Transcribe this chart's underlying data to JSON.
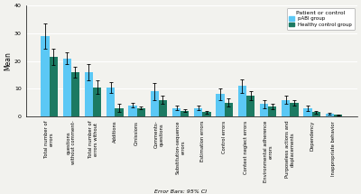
{
  "categories": [
    "Total number of\nerrors",
    "questions\nwithout comment-",
    "Total number of\nerrors without",
    "Additions",
    "Omissions",
    "Comments-\nquestions",
    "Substitution-sequence\nerrors",
    "Estimation errors",
    "Control errors",
    "Context neglect errors",
    "Environmental adherence\nerrors",
    "Purposeless actions and\ndisplacements",
    "Dependency",
    "Inappropriate behavior"
  ],
  "pABI_mean": [
    29.0,
    21.0,
    16.0,
    10.5,
    4.0,
    9.0,
    3.0,
    3.0,
    8.0,
    11.0,
    4.5,
    6.0,
    3.0,
    1.0
  ],
  "control_mean": [
    21.5,
    16.0,
    10.5,
    3.0,
    3.0,
    6.0,
    2.0,
    1.5,
    5.0,
    7.5,
    3.5,
    5.0,
    1.5,
    0.5
  ],
  "pABI_err": [
    4.5,
    2.0,
    3.0,
    2.0,
    0.8,
    3.0,
    0.8,
    0.8,
    2.0,
    2.5,
    1.5,
    1.5,
    1.0,
    0.4
  ],
  "control_err": [
    3.0,
    2.0,
    2.5,
    1.5,
    0.5,
    1.5,
    0.5,
    0.5,
    1.5,
    1.5,
    1.0,
    1.0,
    0.5,
    0.3
  ],
  "pABI_color": "#5BC8F5",
  "control_color": "#1C7A62",
  "background_color": "#f2f2ee",
  "ylabel": "Mean",
  "ylim": [
    0,
    40
  ],
  "yticks": [
    0,
    10,
    20,
    30,
    40
  ],
  "legend_title": "Patient or control",
  "legend_labels": [
    "pABI group",
    "Healthy control group"
  ],
  "xlabel_note": "Error Bars: 95% CI",
  "bar_width": 0.38
}
